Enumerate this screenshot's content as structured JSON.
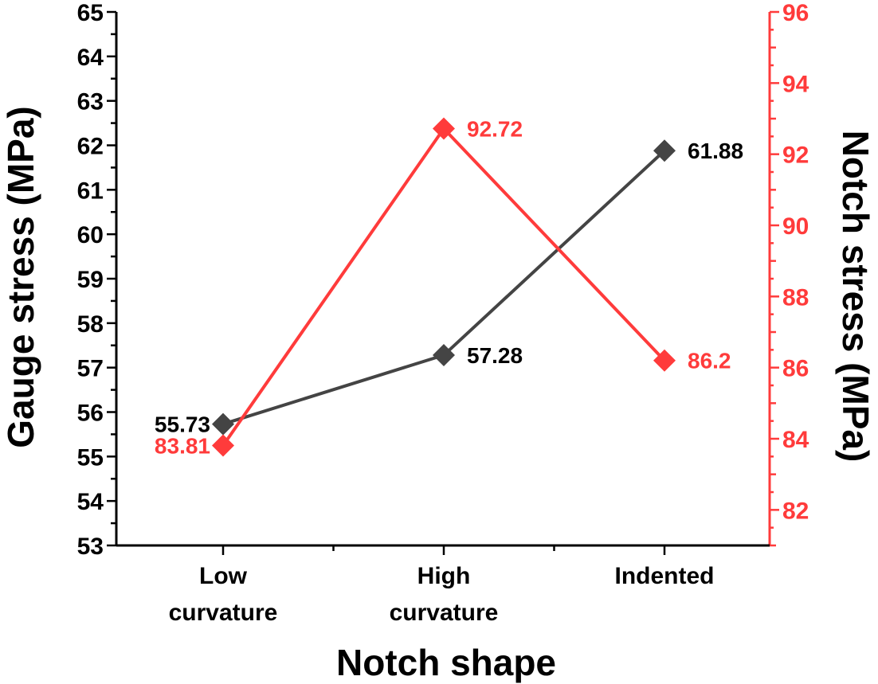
{
  "chart_data": {
    "type": "line",
    "title": "",
    "xlabel": "Notch shape",
    "ylabel": "Gauge stress (MPa)",
    "y2label": "Notch stress (MPa)",
    "categories": [
      [
        "Low",
        "curvature"
      ],
      [
        "High",
        "curvature"
      ],
      [
        "Indented"
      ]
    ],
    "ylim": [
      53,
      65
    ],
    "y2lim": [
      81,
      96
    ],
    "yticks": [
      53,
      54,
      55,
      56,
      57,
      58,
      59,
      60,
      61,
      62,
      63,
      64,
      65
    ],
    "y2ticks": [
      82,
      84,
      86,
      88,
      90,
      92,
      94,
      96
    ],
    "grid": false,
    "legend": "none",
    "series": [
      {
        "axis": "left",
        "color": "#444444",
        "marker": "diamond",
        "values": [
          55.73,
          57.28,
          61.88
        ],
        "labels": [
          "55.73",
          "57.28",
          "61.88"
        ],
        "label_positions": [
          "left",
          "right",
          "right"
        ]
      },
      {
        "axis": "right",
        "color": "#ff3b3b",
        "marker": "diamond",
        "values": [
          83.81,
          92.72,
          86.2
        ],
        "labels": [
          "83.81",
          "92.72",
          "86.2"
        ],
        "label_positions": [
          "left",
          "right",
          "right"
        ]
      }
    ],
    "axis_colors": {
      "left": "#000000",
      "right": "#ff3b3b"
    }
  }
}
